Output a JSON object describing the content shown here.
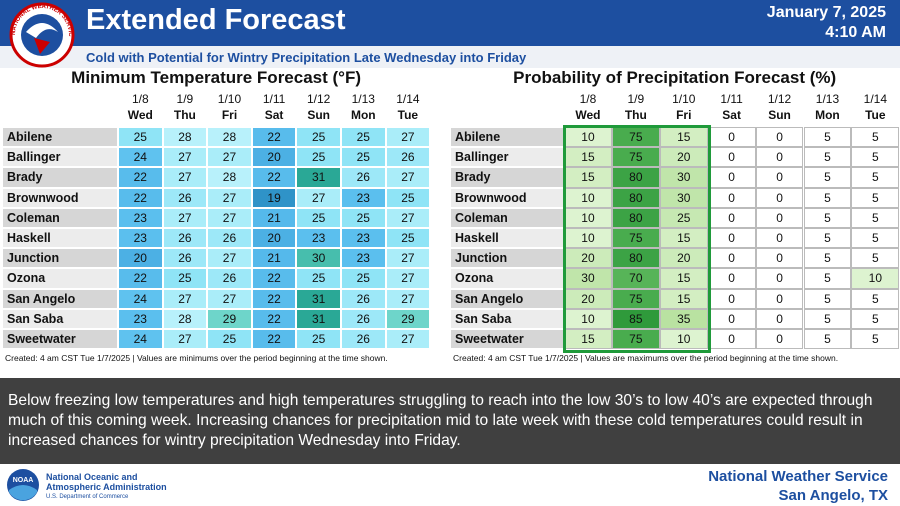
{
  "header": {
    "title": "Extended Forecast",
    "date": "January 7, 2025",
    "time": "4:10 AM",
    "subtitle": "Cold with Potential for Wintry Precipitation Late Wednesday into Friday",
    "seal_text": "NATIONAL WEATHER SERVICE"
  },
  "temperature_table": {
    "title": "Minimum Temperature Forecast (°F)",
    "dates": [
      "1/8",
      "1/9",
      "1/10",
      "1/11",
      "1/12",
      "1/13",
      "1/14"
    ],
    "days": [
      "Wed",
      "Thu",
      "Fri",
      "Sat",
      "Sun",
      "Mon",
      "Tue"
    ],
    "stations": [
      "Abilene",
      "Ballinger",
      "Brady",
      "Brownwood",
      "Coleman",
      "Haskell",
      "Junction",
      "Ozona",
      "San Angelo",
      "San Saba",
      "Sweetwater"
    ],
    "rows": [
      [
        25,
        28,
        28,
        22,
        25,
        25,
        27
      ],
      [
        24,
        27,
        27,
        20,
        25,
        25,
        26
      ],
      [
        22,
        27,
        28,
        22,
        31,
        26,
        27
      ],
      [
        22,
        26,
        27,
        19,
        27,
        23,
        25
      ],
      [
        23,
        27,
        27,
        21,
        25,
        25,
        27
      ],
      [
        23,
        26,
        26,
        20,
        23,
        23,
        25
      ],
      [
        20,
        26,
        27,
        21,
        30,
        23,
        27
      ],
      [
        22,
        25,
        26,
        22,
        25,
        25,
        27
      ],
      [
        24,
        27,
        27,
        22,
        31,
        26,
        27
      ],
      [
        23,
        28,
        29,
        22,
        31,
        26,
        29
      ],
      [
        24,
        27,
        25,
        22,
        25,
        26,
        27
      ]
    ],
    "footnote": "Created: 4 am CST Tue 1/7/2025 | Values are minimums over the period beginning at the time shown."
  },
  "precipitation_table": {
    "title": "Probability of Precipitation Forecast (%)",
    "dates": [
      "1/8",
      "1/9",
      "1/10",
      "1/11",
      "1/12",
      "1/13",
      "1/14"
    ],
    "days": [
      "Wed",
      "Thu",
      "Fri",
      "Sat",
      "Sun",
      "Mon",
      "Tue"
    ],
    "stations": [
      "Abilene",
      "Ballinger",
      "Brady",
      "Brownwood",
      "Coleman",
      "Haskell",
      "Junction",
      "Ozona",
      "San Angelo",
      "San Saba",
      "Sweetwater"
    ],
    "rows": [
      [
        10,
        75,
        15,
        0,
        0,
        5,
        5
      ],
      [
        15,
        75,
        20,
        0,
        0,
        5,
        5
      ],
      [
        15,
        80,
        30,
        0,
        0,
        5,
        5
      ],
      [
        10,
        80,
        30,
        0,
        0,
        5,
        5
      ],
      [
        10,
        80,
        25,
        0,
        0,
        5,
        5
      ],
      [
        10,
        75,
        15,
        0,
        0,
        5,
        5
      ],
      [
        20,
        80,
        20,
        0,
        0,
        5,
        5
      ],
      [
        30,
        70,
        15,
        0,
        0,
        5,
        10
      ],
      [
        20,
        75,
        15,
        0,
        0,
        5,
        5
      ],
      [
        10,
        85,
        35,
        0,
        0,
        5,
        5
      ],
      [
        15,
        75,
        10,
        0,
        0,
        5,
        5
      ]
    ],
    "footnote": "Created: 4 am CST Tue 1/7/2025 | Values are maximums over the period beginning at the time shown."
  },
  "summary": "Below freezing low temperatures and high temperatures struggling to reach into the low 30’s to low 40’s are expected through much of this coming week. Increasing chances for precipitation mid to late week with these cold temperatures could result in increased chances for wintry precipitation Wednesday into Friday.",
  "footer": {
    "noaa_line1": "National Oceanic and",
    "noaa_line2": "Atmospheric Administration",
    "noaa_line3": "U.S. Department of Commerce",
    "office": "National Weather Service",
    "location": "San Angelo, TX",
    "noaa_logo": "NOAA"
  }
}
